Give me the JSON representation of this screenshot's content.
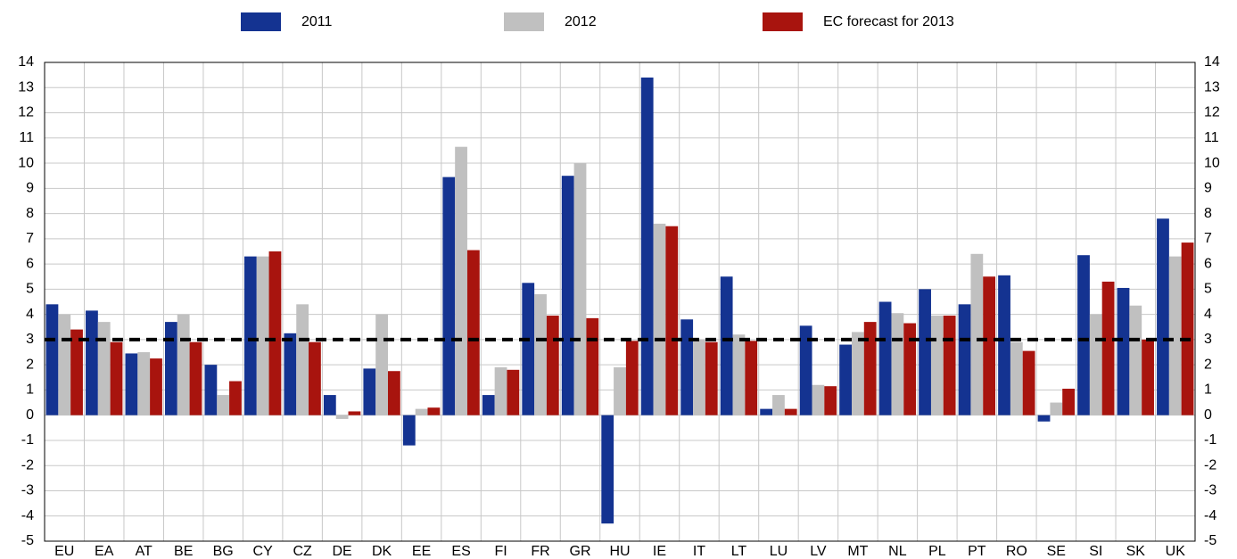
{
  "chart_data": {
    "type": "bar",
    "categories": [
      "EU",
      "EA",
      "AT",
      "BE",
      "BG",
      "CY",
      "CZ",
      "DE",
      "DK",
      "EE",
      "ES",
      "FI",
      "FR",
      "GR",
      "HU",
      "IE",
      "IT",
      "LT",
      "LU",
      "LV",
      "MT",
      "NL",
      "PL",
      "PT",
      "RO",
      "SE",
      "SI",
      "SK",
      "UK"
    ],
    "series": [
      {
        "name": "2011",
        "color": "#143391",
        "values": [
          4.4,
          4.15,
          2.45,
          3.7,
          2.0,
          6.3,
          3.25,
          0.8,
          1.85,
          -1.2,
          9.45,
          0.8,
          5.25,
          9.5,
          -4.3,
          13.4,
          3.8,
          5.5,
          0.25,
          3.55,
          2.8,
          4.5,
          5.0,
          4.4,
          5.55,
          -0.25,
          6.35,
          5.05,
          7.8
        ]
      },
      {
        "name": "2012",
        "color": "#c0c0c0",
        "values": [
          4.0,
          3.7,
          2.5,
          4.0,
          0.8,
          6.3,
          4.4,
          -0.15,
          4.0,
          0.25,
          10.65,
          1.9,
          4.8,
          10.0,
          1.9,
          7.6,
          3.0,
          3.2,
          0.8,
          1.2,
          3.3,
          4.05,
          3.95,
          6.4,
          2.9,
          0.5,
          4.0,
          4.35,
          6.3
        ]
      },
      {
        "name": "EC forecast for 2013",
        "color": "#a8140e",
        "values": [
          3.4,
          2.9,
          2.25,
          2.9,
          1.35,
          6.5,
          2.9,
          0.15,
          1.75,
          0.3,
          6.55,
          1.8,
          3.95,
          3.85,
          2.95,
          7.5,
          2.9,
          2.95,
          0.25,
          1.15,
          3.7,
          3.65,
          3.95,
          5.5,
          2.55,
          1.05,
          5.3,
          3.0,
          6.85
        ]
      }
    ],
    "ylim": [
      -5,
      14
    ],
    "yticks": [
      -5,
      -4,
      -3,
      -2,
      -1,
      0,
      1,
      2,
      3,
      4,
      5,
      6,
      7,
      8,
      9,
      10,
      11,
      12,
      13,
      14
    ],
    "grid": true,
    "reference_line": 3,
    "legend": "top"
  }
}
